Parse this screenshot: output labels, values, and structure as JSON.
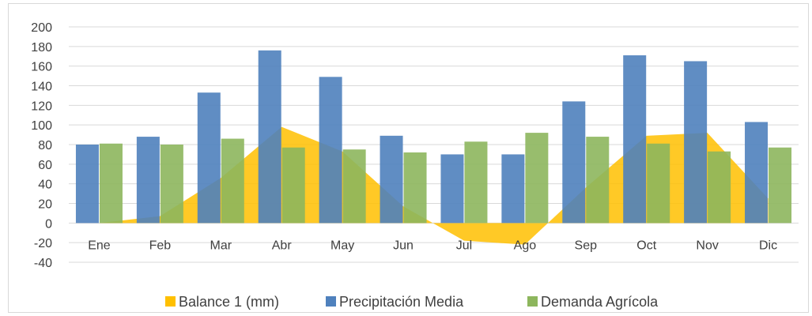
{
  "chart_data": {
    "type": "bar",
    "categories": [
      "Ene",
      "Feb",
      "Mar",
      "Abr",
      "May",
      "Jun",
      "Jul",
      "Ago",
      "Sep",
      "Oct",
      "Nov",
      "Dic"
    ],
    "series": [
      {
        "name": "Balance 1 (mm)",
        "type": "area",
        "color": "#FFC000",
        "values": [
          0,
          7,
          46,
          98,
          73,
          17,
          -18,
          -22,
          36,
          89,
          92,
          25
        ]
      },
      {
        "name": "Precipitación Media",
        "type": "bar",
        "color": "#4F81BD",
        "values": [
          80,
          88,
          133,
          176,
          149,
          89,
          70,
          70,
          124,
          171,
          165,
          103
        ]
      },
      {
        "name": "Demanda Agrícola",
        "type": "bar",
        "color": "#8DB65D",
        "values": [
          81,
          80,
          86,
          77,
          75,
          72,
          83,
          92,
          88,
          81,
          73,
          77
        ]
      }
    ],
    "y_ticks": [
      "200",
      "180",
      "160",
      "140",
      "120",
      "100",
      "80",
      "60",
      "40",
      "20",
      "0",
      "-20",
      "-40"
    ],
    "ylim": [
      -40,
      200
    ],
    "grid": true,
    "legend_position": "bottom"
  }
}
